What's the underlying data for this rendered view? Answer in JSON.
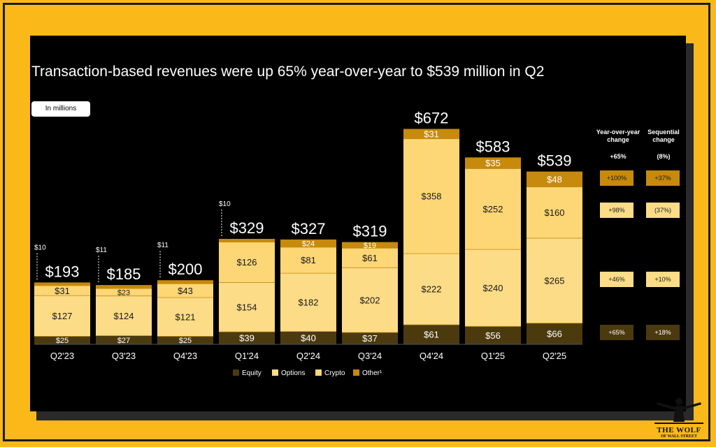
{
  "title": "Transaction-based revenues were up 65% year-over-year to $539 million in Q2",
  "units_label": "In millions",
  "chart_data": {
    "type": "bar",
    "stacked": true,
    "categories": [
      "Q2'23",
      "Q3'23",
      "Q4'23",
      "Q1'24",
      "Q2'24",
      "Q3'24",
      "Q4'24",
      "Q1'25",
      "Q2'25"
    ],
    "series": [
      {
        "name": "Equity",
        "color": "#4c3a0f",
        "label_color": "#ffffff",
        "values": [
          25,
          27,
          25,
          39,
          40,
          37,
          61,
          56,
          66
        ],
        "labels": [
          "$25",
          "$27",
          "$25",
          "$39",
          "$40",
          "$37",
          "$61",
          "$56",
          "$66"
        ]
      },
      {
        "name": "Options",
        "color": "#fddc87",
        "label_color": "#1a1a1a",
        "values": [
          127,
          124,
          121,
          154,
          182,
          202,
          222,
          240,
          265
        ],
        "labels": [
          "$127",
          "$124",
          "$121",
          "$154",
          "$182",
          "$202",
          "$222",
          "$240",
          "$265"
        ]
      },
      {
        "name": "Crypto",
        "color": "#fdd676",
        "label_color": "#1a1a1a",
        "values": [
          31,
          23,
          43,
          126,
          81,
          61,
          358,
          252,
          160
        ],
        "labels": [
          "$31",
          "$23",
          "$43",
          "$126",
          "$81",
          "$61",
          "$358",
          "$252",
          "$160"
        ]
      },
      {
        "name": "Other¹",
        "color": "#c68a0c",
        "label_color": "#ffffff",
        "values": [
          10,
          11,
          11,
          10,
          24,
          19,
          31,
          35,
          48
        ],
        "labels": [
          "$10",
          "$11",
          "$11",
          "$10",
          "$24",
          "$19",
          "$31",
          "$35",
          "$48"
        ],
        "label_outside": [
          true,
          true,
          true,
          true,
          false,
          false,
          false,
          false,
          false
        ]
      }
    ],
    "totals": [
      193,
      185,
      200,
      329,
      327,
      319,
      672,
      583,
      539
    ],
    "total_labels": [
      "$193",
      "$185",
      "$200",
      "$329",
      "$327",
      "$319",
      "$672",
      "$583",
      "$539"
    ],
    "ylim": [
      0,
      680
    ],
    "legend": [
      "Equity",
      "Options",
      "Crypto",
      "Other¹"
    ],
    "legend_position": "bottom",
    "grid": false
  },
  "change_table": {
    "yoy_header": "Year-over-year change",
    "seq_header": "Sequential change",
    "yoy_total": "+65%",
    "seq_total": "(8%)",
    "rows": [
      {
        "segment": "Other¹",
        "style": "other",
        "yoy": "+100%",
        "seq": "+37%"
      },
      {
        "segment": "Crypto",
        "style": "light",
        "yoy": "+98%",
        "seq": "(37%)"
      },
      {
        "segment": "Options",
        "style": "light",
        "yoy": "+46%",
        "seq": "+10%"
      },
      {
        "segment": "Equity",
        "style": "dark",
        "yoy": "+65%",
        "seq": "+18%"
      }
    ]
  },
  "logo": {
    "line1": "THE WOLF",
    "line2": "OF WALL STREET"
  }
}
